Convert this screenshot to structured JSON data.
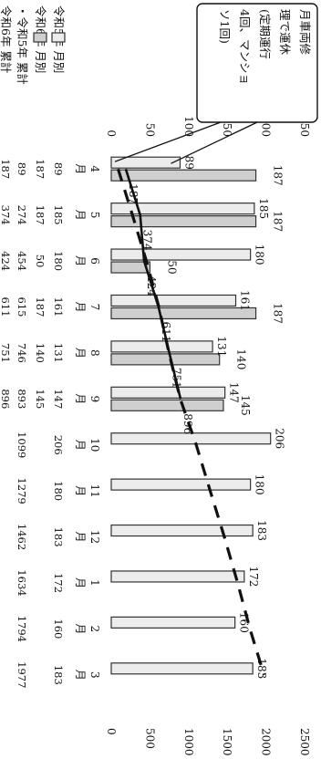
{
  "chart_data": {
    "type": "bar",
    "categories": [
      "4\n月",
      "5\n月",
      "6\n月",
      "7\n月",
      "8\n月",
      "9\n月",
      "10\n月",
      "11\n月",
      "12\n月",
      "1\n月",
      "2\n月",
      "3\n月"
    ],
    "left_ticks": [
      "250",
      "200",
      "150",
      "100",
      "50",
      "0"
    ],
    "right_ticks": [
      "2500",
      "2000",
      "1500",
      "1000",
      "500",
      "0"
    ],
    "ylim_left": [
      0,
      250
    ],
    "ylim_right": [
      0,
      2500
    ],
    "series": [
      {
        "name": "令和5年 月別",
        "type": "bar",
        "values": [
          89,
          185,
          180,
          161,
          131,
          147,
          206,
          180,
          183,
          172,
          160,
          183
        ]
      },
      {
        "name": "令和6年 月別",
        "type": "bar",
        "values": [
          187,
          187,
          50,
          187,
          140,
          145,
          null,
          null,
          null,
          null,
          null,
          null
        ]
      },
      {
        "name": "令和5年 累計",
        "type": "line",
        "style": "dashed",
        "values": [
          89,
          274,
          454,
          615,
          746,
          893,
          1099,
          1279,
          1462,
          1634,
          1794,
          1977
        ]
      },
      {
        "name": "令和6年 累計",
        "type": "line",
        "style": "solid",
        "values": [
          187,
          374,
          424,
          611,
          751,
          896,
          null,
          null,
          null,
          null,
          null,
          null
        ]
      }
    ],
    "bar_labels_r6": [
      "187",
      "187",
      "50",
      "187",
      "140",
      "145"
    ],
    "bar_labels_r5_top": [
      "",
      "185",
      "180",
      "161",
      "131",
      "147",
      "206",
      "180",
      "183",
      "172",
      "160",
      "183"
    ],
    "bar_labels_r5_low": [
      "89",
      "",
      "",
      "",
      "",
      "",
      "",
      "",
      "",
      "",
      "",
      ""
    ],
    "cum_labels_r6": [
      "187",
      "374",
      "424",
      "611",
      "751",
      "896"
    ],
    "table": {
      "rows": [
        {
          "label": "令和5年 月別",
          "cells": [
            "89",
            "185",
            "180",
            "161",
            "131",
            "147",
            "206",
            "180",
            "183",
            "172",
            "160",
            "183"
          ]
        },
        {
          "label": "令和6年 月別",
          "cells": [
            "187",
            "187",
            "50",
            "187",
            "140",
            "145",
            "",
            "",
            "",
            "",
            "",
            ""
          ]
        },
        {
          "label": "・令和5年 累計",
          "cells": [
            "89",
            "274",
            "454",
            "615",
            "746",
            "893",
            "1099",
            "1279",
            "1462",
            "1634",
            "1794",
            "1977"
          ]
        },
        {
          "label": "令和6年 累計",
          "cells": [
            "187",
            "374",
            "424",
            "611",
            "751",
            "896",
            "",
            "",
            "",
            "",
            "",
            ""
          ]
        }
      ]
    },
    "callout_lines": [
      "月車両修",
      "理で運休",
      "(定期運行",
      "4回、マンショ",
      "ソ1回)"
    ],
    "grid": false,
    "legend": "table-left"
  },
  "colors": {
    "bar_r5": "#ececec",
    "bar_r6": "#cfcfcf",
    "line": "#111111"
  }
}
